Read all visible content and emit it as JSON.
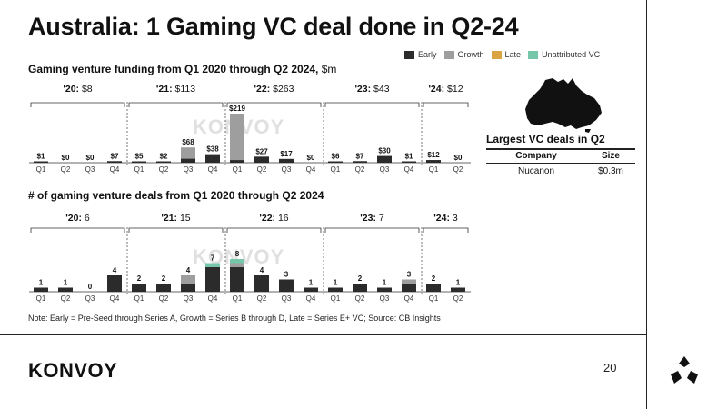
{
  "title": "Australia: 1 Gaming VC deal done in Q2-24",
  "legend": [
    {
      "label": "Early",
      "color": "#2b2b2b"
    },
    {
      "label": "Growth",
      "color": "#9e9e9e"
    },
    {
      "label": "Late",
      "color": "#d9a441"
    },
    {
      "label": "Unattributed VC",
      "color": "#76c7a9"
    }
  ],
  "funding": {
    "title": "Gaming venture funding from Q1 2020 through Q2 2024,",
    "unit": "$m",
    "years": [
      {
        "year": "'20:",
        "total": "$8"
      },
      {
        "year": "'21:",
        "total": "$113"
      },
      {
        "year": "'22:",
        "total": "$263"
      },
      {
        "year": "'23:",
        "total": "$43"
      },
      {
        "year": "'24:",
        "total": "$12"
      }
    ]
  },
  "deals_chart": {
    "title": "# of gaming venture deals from Q1 2020 through Q2 2024",
    "years": [
      {
        "year": "'20:",
        "total": "6"
      },
      {
        "year": "'21:",
        "total": "15"
      },
      {
        "year": "'22:",
        "total": "16"
      },
      {
        "year": "'23:",
        "total": "7"
      },
      {
        "year": "'24:",
        "total": "3"
      }
    ]
  },
  "watermark": "KONVOY",
  "chart_data": [
    {
      "type": "bar",
      "stacked": true,
      "categories": [
        "Q1",
        "Q2",
        "Q3",
        "Q4",
        "Q1",
        "Q2",
        "Q3",
        "Q4",
        "Q1",
        "Q2",
        "Q3",
        "Q4",
        "Q1",
        "Q2",
        "Q3",
        "Q4",
        "Q1",
        "Q2"
      ],
      "year_groups": [
        "'20",
        "'20",
        "'20",
        "'20",
        "'21",
        "'21",
        "'21",
        "'21",
        "'22",
        "'22",
        "'22",
        "'22",
        "'23",
        "'23",
        "'23",
        "'23",
        "'24",
        "'24"
      ],
      "labels": [
        "$1",
        "$0",
        "$0",
        "$7",
        "$5",
        "$2",
        "$68",
        "$38",
        "$219",
        "$27",
        "$17",
        "$0",
        "$6",
        "$7",
        "$30",
        "$1",
        "$12",
        "$0"
      ],
      "totals": [
        1,
        0,
        0,
        7,
        5,
        2,
        68,
        38,
        219,
        27,
        17,
        0,
        6,
        7,
        30,
        1,
        12,
        0
      ],
      "series": [
        {
          "name": "Early",
          "values": [
            1,
            0,
            0,
            7,
            5,
            2,
            18,
            38,
            12,
            27,
            17,
            0,
            6,
            7,
            30,
            1,
            12,
            0
          ]
        },
        {
          "name": "Growth",
          "values": [
            0,
            0,
            0,
            0,
            0,
            0,
            50,
            0,
            207,
            0,
            0,
            0,
            0,
            0,
            0,
            0,
            0,
            0
          ]
        },
        {
          "name": "Late",
          "values": [
            0,
            0,
            0,
            0,
            0,
            0,
            0,
            0,
            0,
            0,
            0,
            0,
            0,
            0,
            0,
            0,
            0,
            0
          ]
        },
        {
          "name": "Unattributed VC",
          "values": [
            0,
            0,
            0,
            0,
            0,
            0,
            0,
            0,
            0,
            0,
            0,
            0,
            0,
            0,
            0,
            0,
            0,
            0
          ]
        }
      ],
      "title": "Gaming venture funding from Q1 2020 through Q2 2024, $m",
      "ylim": [
        0,
        219
      ]
    },
    {
      "type": "bar",
      "stacked": true,
      "categories": [
        "Q1",
        "Q2",
        "Q3",
        "Q4",
        "Q1",
        "Q2",
        "Q3",
        "Q4",
        "Q1",
        "Q2",
        "Q3",
        "Q4",
        "Q1",
        "Q2",
        "Q3",
        "Q4",
        "Q1",
        "Q2"
      ],
      "year_groups": [
        "'20",
        "'20",
        "'20",
        "'20",
        "'21",
        "'21",
        "'21",
        "'21",
        "'22",
        "'22",
        "'22",
        "'22",
        "'23",
        "'23",
        "'23",
        "'23",
        "'24",
        "'24"
      ],
      "labels": [
        "1",
        "1",
        "0",
        "4",
        "2",
        "2",
        "4",
        "7",
        "8",
        "4",
        "3",
        "1",
        "1",
        "2",
        "1",
        "3",
        "2",
        "1"
      ],
      "totals": [
        1,
        1,
        0,
        4,
        2,
        2,
        4,
        7,
        8,
        4,
        3,
        1,
        1,
        2,
        1,
        3,
        2,
        1
      ],
      "series": [
        {
          "name": "Early",
          "values": [
            1,
            1,
            0,
            4,
            2,
            2,
            2,
            6,
            6,
            4,
            3,
            1,
            1,
            2,
            1,
            2,
            2,
            1
          ]
        },
        {
          "name": "Growth",
          "values": [
            0,
            0,
            0,
            0,
            0,
            0,
            2,
            0,
            1,
            0,
            0,
            0,
            0,
            0,
            0,
            1,
            0,
            0
          ]
        },
        {
          "name": "Late",
          "values": [
            0,
            0,
            0,
            0,
            0,
            0,
            0,
            0,
            0,
            0,
            0,
            0,
            0,
            0,
            0,
            0,
            0,
            0
          ]
        },
        {
          "name": "Unattributed VC",
          "values": [
            0,
            0,
            0,
            0,
            0,
            0,
            0,
            1,
            1,
            0,
            0,
            0,
            0,
            0,
            0,
            0,
            0,
            0
          ]
        }
      ],
      "title": "# of gaming venture deals from Q1 2020 through Q2 2024",
      "ylim": [
        0,
        8
      ]
    }
  ],
  "largest_deals": {
    "title": "Largest VC deals in Q2",
    "headers": [
      "Company",
      "Size"
    ],
    "rows": [
      {
        "company": "Nucanon",
        "size": "$0.3m"
      }
    ]
  },
  "note": "Note: Early = Pre-Seed through Series A, Growth = Series B through D, Late = Series E+ VC; Source: CB Insights",
  "logo": "KONVOY",
  "page_number": "20",
  "icons": {
    "map": "australia-map-icon",
    "brand_mark": "konvoy-mark-icon"
  }
}
